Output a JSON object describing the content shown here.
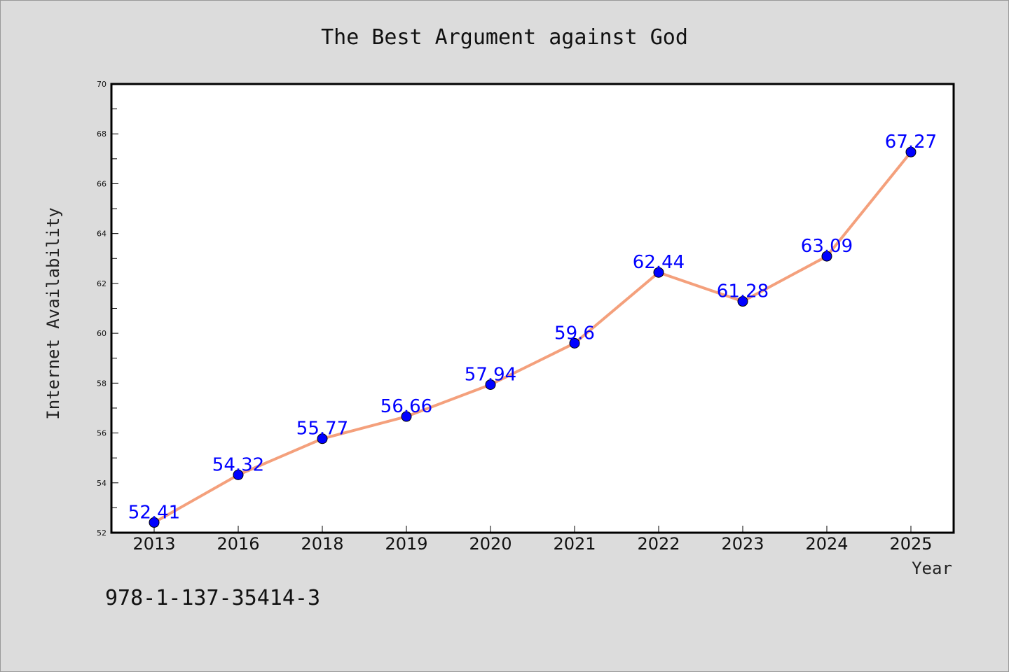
{
  "chart_data": {
    "type": "line",
    "title": "The Best Argument against God",
    "xlabel": "Year",
    "ylabel": "Internet Availability",
    "categories": [
      "2013",
      "2016",
      "2018",
      "2019",
      "2020",
      "2021",
      "2022",
      "2023",
      "2024",
      "2025"
    ],
    "series": [
      {
        "values": [
          52.41,
          54.32,
          55.77,
          56.66,
          57.94,
          59.6,
          62.44,
          61.28,
          63.09,
          67.27
        ],
        "labels": [
          "52.41",
          "54.32",
          "55.77",
          "56.66",
          "57.94",
          "59.6",
          "62.44",
          "61.28",
          "63.09",
          "67.27"
        ],
        "line_color": "#f4a07c",
        "marker_color": "#0000ff"
      }
    ],
    "ylim": [
      52,
      70
    ],
    "yticks": [
      "52",
      "54",
      "56",
      "58",
      "60",
      "62",
      "64",
      "66",
      "68",
      "70"
    ],
    "grid": false,
    "legend": "none"
  },
  "footer": {
    "text": "978-1-137-35414-3"
  }
}
